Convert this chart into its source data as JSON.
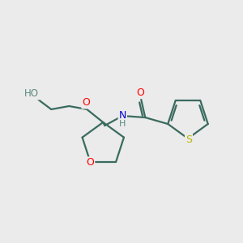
{
  "bg_color": "#ebebeb",
  "bond_color": "#3a6b5e",
  "atom_colors": {
    "O": "#ff0000",
    "N": "#0000cc",
    "S": "#b8b800",
    "H_label": "#5a8a80"
  },
  "figsize": [
    3.0,
    3.0
  ],
  "dpi": 100,
  "lw": 1.6
}
